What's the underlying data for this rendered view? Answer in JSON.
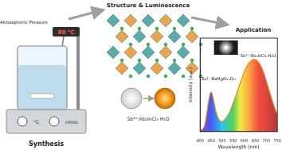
{
  "diagram": {
    "synthesis": {
      "title": "Synthesis",
      "pressure": "Atmospheric Pressure",
      "temperature": "80 °C",
      "dials": [
        "°C",
        "r/min"
      ]
    },
    "structure": {
      "title": "Structure & Luminescence",
      "material": "Sb³⁺:Rb₂InCl₅·H₂O"
    },
    "application": {
      "title": "Application"
    }
  },
  "chart_data": {
    "type": "line",
    "x_label": "Wavelength (nm)",
    "y_label": "Intensity (a.u.)",
    "x": [
      400,
      410,
      420,
      430,
      440,
      450,
      460,
      470,
      480,
      490,
      500,
      510,
      520,
      530,
      540,
      550,
      560,
      570,
      580,
      590,
      600,
      610,
      620,
      630,
      640,
      650,
      660,
      670,
      680,
      690,
      700,
      710,
      720,
      730,
      740,
      750
    ],
    "values": [
      0.02,
      0.03,
      0.08,
      0.25,
      0.45,
      0.55,
      0.45,
      0.3,
      0.2,
      0.15,
      0.14,
      0.16,
      0.2,
      0.25,
      0.32,
      0.4,
      0.48,
      0.57,
      0.66,
      0.75,
      0.83,
      0.9,
      0.95,
      0.98,
      1.0,
      1.0,
      0.98,
      0.94,
      0.88,
      0.8,
      0.7,
      0.6,
      0.5,
      0.4,
      0.31,
      0.24
    ],
    "color": "#e8891a",
    "xlim": [
      400,
      750
    ],
    "xticks": [
      400,
      450,
      500,
      550,
      600,
      650,
      700,
      750
    ],
    "ylim": [
      0,
      1.3
    ],
    "grid": false,
    "tick_labels": "x",
    "annotations": [
      "Eu²⁺:BaMgAl₁₀O₁₇",
      "Sb³⁺:Rb₂InCl₅·H₂O"
    ]
  }
}
